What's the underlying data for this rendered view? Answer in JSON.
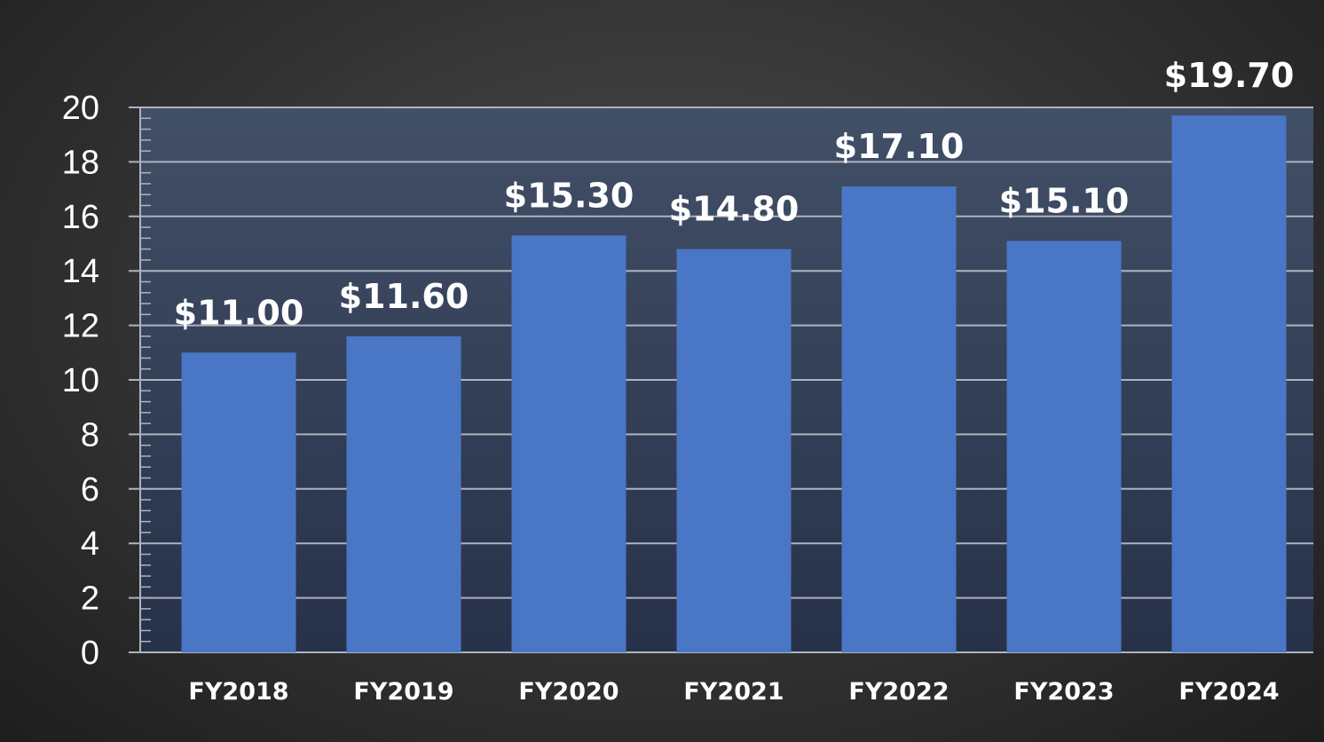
{
  "colors": {
    "bar": "#4a76c6",
    "plot_top": "#414f67",
    "plot_bottom": "#27324a",
    "grid": "#aeb3bd",
    "text": "#ffffff"
  },
  "chart_data": {
    "type": "bar",
    "title": "",
    "xlabel": "",
    "ylabel": "",
    "categories": [
      "FY2018",
      "FY2019",
      "FY2020",
      "FY2021",
      "FY2022",
      "FY2023",
      "FY2024"
    ],
    "values": [
      11.0,
      11.6,
      15.3,
      14.8,
      17.1,
      15.1,
      19.7
    ],
    "data_labels": [
      "$11.00",
      "$11.60",
      "$15.30",
      "$14.80",
      "$17.10",
      "$15.10",
      "$19.70"
    ],
    "ylim": [
      0,
      20
    ],
    "yticks": [
      "0",
      "2",
      "4",
      "6",
      "8",
      "10",
      "12",
      "14",
      "16",
      "18",
      "20"
    ],
    "grid": true,
    "legend": "none"
  }
}
